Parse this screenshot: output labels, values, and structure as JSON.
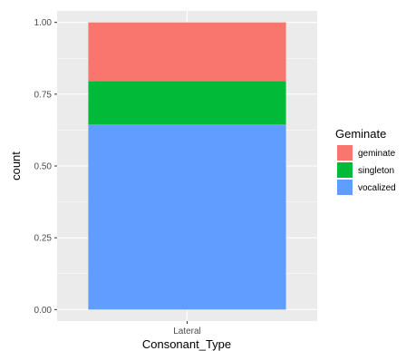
{
  "chart_data": {
    "type": "bar",
    "stacked": true,
    "position": "fill",
    "categories": [
      "Lateral"
    ],
    "series": [
      {
        "name": "vocalized",
        "values": [
          0.645
        ],
        "color": "#619CFF"
      },
      {
        "name": "singleton",
        "values": [
          0.15
        ],
        "color": "#00BA38"
      },
      {
        "name": "geminate",
        "values": [
          0.205
        ],
        "color": "#F8766D"
      }
    ],
    "stack_order_top_to_bottom": [
      "geminate",
      "singleton",
      "vocalized"
    ],
    "xlabel": "Consonant_Type",
    "ylabel": "count",
    "ylim": [
      -0.04,
      1.04
    ],
    "yticks": [
      0.0,
      0.25,
      0.5,
      0.75,
      1.0
    ],
    "ytick_labels": [
      "0.00",
      "0.25",
      "0.50",
      "0.75",
      "1.00"
    ],
    "grid": true,
    "panel_background": "#EBEBEB",
    "legend": {
      "title": "Geminate",
      "position": "right",
      "entries": [
        "geminate",
        "singleton",
        "vocalized"
      ]
    }
  }
}
